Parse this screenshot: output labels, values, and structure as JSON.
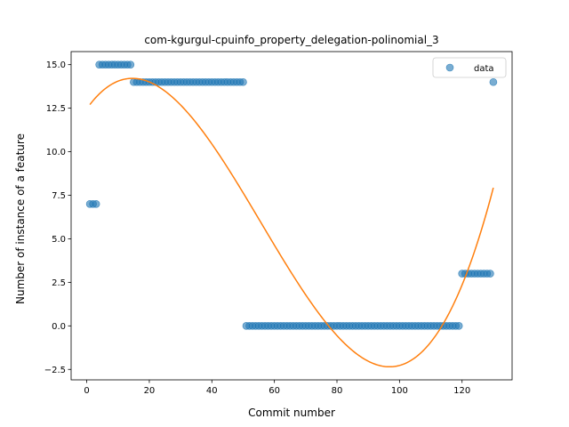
{
  "chart_data": {
    "type": "scatter",
    "title": "com-kgurgul-cpuinfo_property_delegation-polinomial_3",
    "xlabel": "Commit number",
    "ylabel": "Number of instance of a feature",
    "xlim": [
      -5,
      136
    ],
    "ylim": [
      -3.1,
      15.75
    ],
    "xticks": [
      0,
      20,
      40,
      60,
      80,
      100,
      120
    ],
    "yticks": [
      -2.5,
      0.0,
      2.5,
      5.0,
      7.5,
      10.0,
      12.5,
      15.0
    ],
    "ytick_labels": [
      "−2.5",
      "0.0",
      "2.5",
      "5.0",
      "7.5",
      "10.0",
      "12.5",
      "15.0"
    ],
    "grid": false,
    "legend": {
      "position": "top-right",
      "entries": [
        "data"
      ]
    },
    "colors": {
      "data": "#1f77b4",
      "fit": "#ff7f0e"
    },
    "series": [
      {
        "name": "data",
        "kind": "scatter",
        "segments": [
          {
            "x_start": 1,
            "x_end": 3,
            "y": 7
          },
          {
            "x_start": 4,
            "x_end": 14,
            "y": 15
          },
          {
            "x_start": 15,
            "x_end": 50,
            "y": 14
          },
          {
            "x_start": 51,
            "x_end": 119,
            "y": 0
          },
          {
            "x_start": 120,
            "x_end": 129,
            "y": 3
          },
          {
            "x_start": 130,
            "x_end": 130,
            "y": 14
          }
        ]
      },
      {
        "kind": "line",
        "curve": "cubic polynomial fit",
        "x_range": [
          1,
          130
        ],
        "points": [
          [
            1,
            12.65
          ],
          [
            16,
            14.3
          ],
          [
            47,
            8.5
          ],
          [
            79,
            -0.5
          ],
          [
            97,
            -2.2
          ],
          [
            130,
            7.9
          ]
        ]
      }
    ]
  }
}
